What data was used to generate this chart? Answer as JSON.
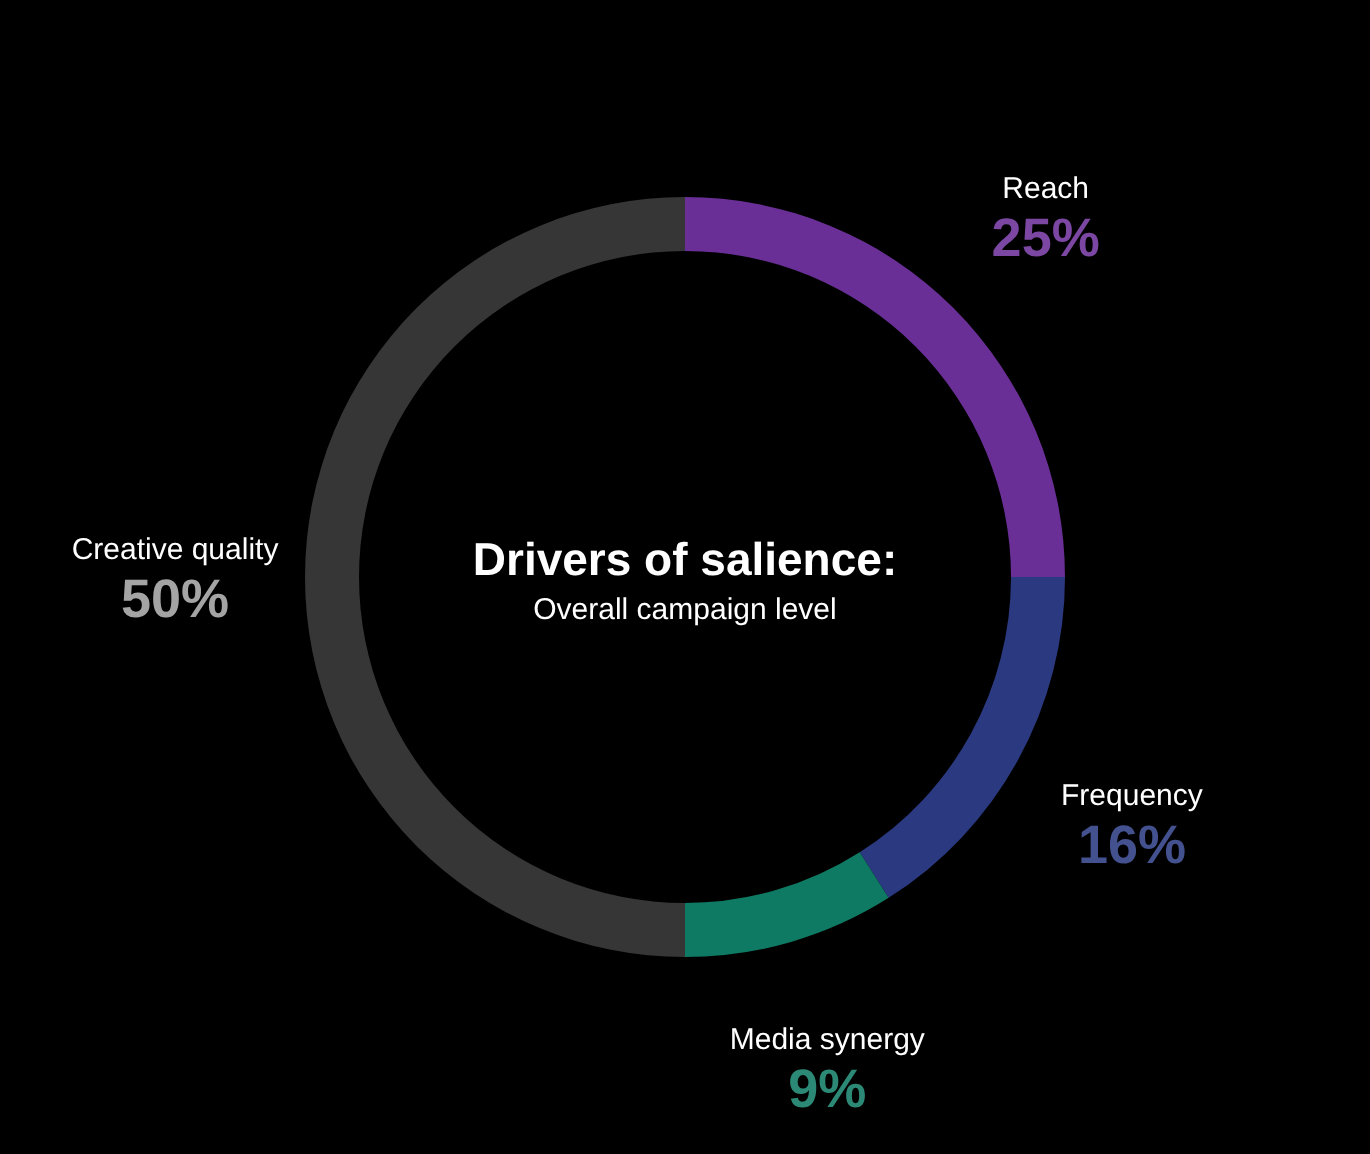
{
  "chart_data": {
    "type": "donut",
    "title": "Drivers of salience:",
    "subtitle": "Overall campaign level",
    "categories": [
      "Reach",
      "Frequency",
      "Media synergy",
      "Creative quality"
    ],
    "values": [
      25,
      16,
      9,
      50
    ],
    "value_labels": [
      "25%",
      "16%",
      "9%",
      "50%"
    ],
    "colors": [
      "#6a2f96",
      "#2b3a80",
      "#0f7a63",
      "#363636"
    ]
  }
}
